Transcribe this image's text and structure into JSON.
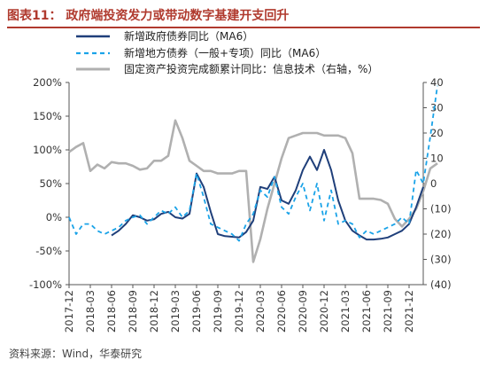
{
  "figure": {
    "title": "图表11：  政府端投资发力或带动数字基建开支回升",
    "source": "资料来源：Wind，华泰研究"
  },
  "colors": {
    "title": "#b03a2e",
    "series_1": "#1f3f7a",
    "series_2": "#1aa3e8",
    "series_3": "#b0b0b0"
  },
  "chart_data": {
    "type": "line",
    "x_type": "date",
    "x_range": [
      "2017-12",
      "2022-02"
    ],
    "x_ticks": [
      "2017-12",
      "2018-03",
      "2018-06",
      "2018-09",
      "2018-12",
      "2019-03",
      "2019-06",
      "2019-09",
      "2019-12",
      "2020-03",
      "2020-06",
      "2020-09",
      "2020-12",
      "2021-03",
      "2021-06",
      "2021-09",
      "2021-12"
    ],
    "y_left": {
      "min": -100,
      "max": 200,
      "step": 50,
      "tick_labels": [
        "-100%",
        "-50%",
        "0%",
        "50%",
        "100%",
        "150%",
        "200%"
      ]
    },
    "y_right": {
      "min": -40,
      "max": 40,
      "step": 10,
      "tick_labels": [
        "(40)",
        "(30)",
        "(20)",
        "(10)",
        "0",
        "10",
        "20",
        "30",
        "40"
      ]
    },
    "legend_position": "top",
    "grid": false,
    "series": [
      {
        "name": "新增政府债券同比（MA6）",
        "axis": "left",
        "style": "solid",
        "points": [
          [
            "2018-06",
            -27
          ],
          [
            "2018-07",
            -20
          ],
          [
            "2018-08",
            -10
          ],
          [
            "2018-09",
            3
          ],
          [
            "2018-10",
            0
          ],
          [
            "2018-11",
            -5
          ],
          [
            "2018-12",
            -3
          ],
          [
            "2019-01",
            5
          ],
          [
            "2019-02",
            8
          ],
          [
            "2019-03",
            0
          ],
          [
            "2019-04",
            -2
          ],
          [
            "2019-05",
            5
          ],
          [
            "2019-06",
            65
          ],
          [
            "2019-07",
            45
          ],
          [
            "2019-08",
            8
          ],
          [
            "2019-09",
            -25
          ],
          [
            "2019-10",
            -28
          ],
          [
            "2019-11",
            -29
          ],
          [
            "2019-12",
            -30
          ],
          [
            "2020-01",
            -22
          ],
          [
            "2020-02",
            -5
          ],
          [
            "2020-03",
            45
          ],
          [
            "2020-04",
            42
          ],
          [
            "2020-05",
            60
          ],
          [
            "2020-06",
            25
          ],
          [
            "2020-07",
            20
          ],
          [
            "2020-08",
            40
          ],
          [
            "2020-09",
            70
          ],
          [
            "2020-10",
            90
          ],
          [
            "2020-11",
            70
          ],
          [
            "2020-12",
            100
          ],
          [
            "2021-01",
            70
          ],
          [
            "2021-02",
            25
          ],
          [
            "2021-03",
            -5
          ],
          [
            "2021-04",
            -20
          ],
          [
            "2021-05",
            -27
          ],
          [
            "2021-06",
            -33
          ],
          [
            "2021-07",
            -33
          ],
          [
            "2021-08",
            -32
          ],
          [
            "2021-09",
            -30
          ],
          [
            "2021-10",
            -25
          ],
          [
            "2021-11",
            -20
          ],
          [
            "2021-12",
            -10
          ],
          [
            "2022-01",
            15
          ],
          [
            "2022-02",
            45
          ]
        ]
      },
      {
        "name": "新增地方债券（一般+专项）同比（MA6）",
        "axis": "left",
        "style": "dashed",
        "points": [
          [
            "2017-12",
            0
          ],
          [
            "2018-01",
            -25
          ],
          [
            "2018-02",
            -10
          ],
          [
            "2018-03",
            -10
          ],
          [
            "2018-04",
            -20
          ],
          [
            "2018-05",
            -25
          ],
          [
            "2018-06",
            -20
          ],
          [
            "2018-07",
            -15
          ],
          [
            "2018-08",
            -5
          ],
          [
            "2018-09",
            0
          ],
          [
            "2018-10",
            3
          ],
          [
            "2018-11",
            -10
          ],
          [
            "2018-12",
            0
          ],
          [
            "2019-01",
            10
          ],
          [
            "2019-02",
            5
          ],
          [
            "2019-03",
            15
          ],
          [
            "2019-04",
            0
          ],
          [
            "2019-05",
            10
          ],
          [
            "2019-06",
            65
          ],
          [
            "2019-07",
            30
          ],
          [
            "2019-08",
            -10
          ],
          [
            "2019-09",
            -15
          ],
          [
            "2019-10",
            -20
          ],
          [
            "2019-11",
            -25
          ],
          [
            "2019-12",
            -35
          ],
          [
            "2020-01",
            -10
          ],
          [
            "2020-02",
            5
          ],
          [
            "2020-03",
            40
          ],
          [
            "2020-04",
            30
          ],
          [
            "2020-05",
            60
          ],
          [
            "2020-06",
            15
          ],
          [
            "2020-07",
            5
          ],
          [
            "2020-08",
            30
          ],
          [
            "2020-09",
            50
          ],
          [
            "2020-10",
            10
          ],
          [
            "2020-11",
            50
          ],
          [
            "2020-12",
            -5
          ],
          [
            "2021-01",
            40
          ],
          [
            "2021-02",
            -10
          ],
          [
            "2021-03",
            -5
          ],
          [
            "2021-04",
            -10
          ],
          [
            "2021-05",
            -30
          ],
          [
            "2021-06",
            -20
          ],
          [
            "2021-07",
            -25
          ],
          [
            "2021-08",
            -20
          ],
          [
            "2021-09",
            -15
          ],
          [
            "2021-10",
            -10
          ],
          [
            "2021-11",
            0
          ],
          [
            "2021-12",
            -10
          ],
          [
            "2022-01",
            70
          ],
          [
            "2022-02",
            50
          ],
          [
            "2022-03",
            120
          ],
          [
            "2022-04",
            195
          ]
        ]
      },
      {
        "name": "固定资产投资完成额累计同比：信息技术（右轴，%）",
        "axis": "right",
        "style": "solid",
        "points": [
          [
            "2017-12",
            12.5
          ],
          [
            "2018-01",
            14.5
          ],
          [
            "2018-02",
            16
          ],
          [
            "2018-03",
            5
          ],
          [
            "2018-04",
            7.5
          ],
          [
            "2018-05",
            6
          ],
          [
            "2018-06",
            8.5
          ],
          [
            "2018-07",
            8
          ],
          [
            "2018-08",
            8
          ],
          [
            "2018-09",
            7
          ],
          [
            "2018-10",
            5.5
          ],
          [
            "2018-11",
            6
          ],
          [
            "2018-12",
            9
          ],
          [
            "2019-01",
            9
          ],
          [
            "2019-02",
            11
          ],
          [
            "2019-03",
            25
          ],
          [
            "2019-04",
            18
          ],
          [
            "2019-05",
            9
          ],
          [
            "2019-06",
            7
          ],
          [
            "2019-07",
            5
          ],
          [
            "2019-08",
            5
          ],
          [
            "2019-09",
            4
          ],
          [
            "2019-10",
            4
          ],
          [
            "2019-11",
            4
          ],
          [
            "2019-12",
            5
          ],
          [
            "2020-01",
            5
          ],
          [
            "2020-02",
            -31
          ],
          [
            "2020-03",
            -22
          ],
          [
            "2020-04",
            -10
          ],
          [
            "2020-05",
            0
          ],
          [
            "2020-06",
            10
          ],
          [
            "2020-07",
            18
          ],
          [
            "2020-08",
            19
          ],
          [
            "2020-09",
            20
          ],
          [
            "2020-10",
            20
          ],
          [
            "2020-11",
            20
          ],
          [
            "2020-12",
            19
          ],
          [
            "2021-01",
            19
          ],
          [
            "2021-02",
            19
          ],
          [
            "2021-03",
            18
          ],
          [
            "2021-04",
            12
          ],
          [
            "2021-05",
            -6
          ],
          [
            "2021-06",
            -6
          ],
          [
            "2021-07",
            -6
          ],
          [
            "2021-08",
            -6.5
          ],
          [
            "2021-09",
            -8
          ],
          [
            "2021-10",
            -14
          ],
          [
            "2021-11",
            -17
          ],
          [
            "2021-12",
            -14
          ],
          [
            "2022-01",
            -10
          ],
          [
            "2022-02",
            -3
          ],
          [
            "2022-03",
            6
          ],
          [
            "2022-04",
            8
          ]
        ]
      }
    ]
  }
}
